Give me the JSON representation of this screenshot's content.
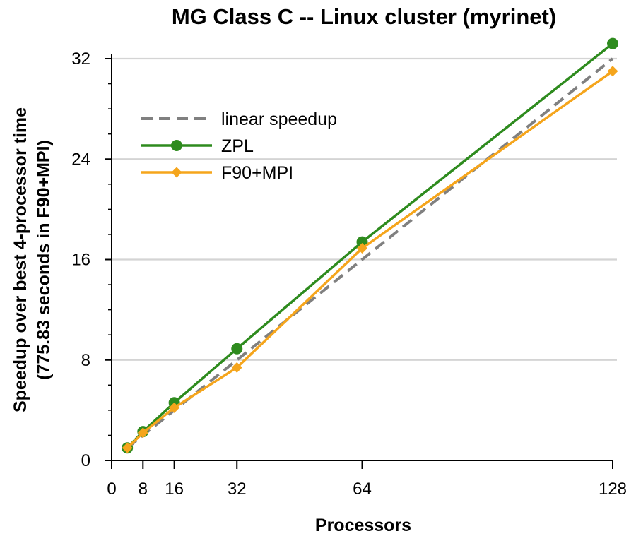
{
  "chart_data": {
    "type": "line",
    "title": "MG Class C -- Linux cluster (myrinet)",
    "xlabel": "Processors",
    "ylabel_line1": "Speedup over best 4-processor time",
    "ylabel_line2": "(775.83 seconds in F90+MPI)",
    "xlim": [
      0,
      128
    ],
    "ylim": [
      0,
      32
    ],
    "xticks": [
      0,
      8,
      16,
      32,
      64,
      128
    ],
    "yticks": [
      0,
      8,
      16,
      24,
      32
    ],
    "grid": true,
    "legend_position": "top-left",
    "series": [
      {
        "name": "linear speedup",
        "style": "dashed",
        "marker": "none",
        "color": "#808080",
        "x": [
          4,
          128
        ],
        "y": [
          1,
          32
        ]
      },
      {
        "name": "ZPL",
        "style": "solid",
        "marker": "circle",
        "color": "#2e8b1e",
        "x": [
          4,
          8,
          16,
          32,
          64,
          128
        ],
        "y": [
          1.0,
          2.3,
          4.6,
          8.9,
          17.4,
          33.2
        ]
      },
      {
        "name": "F90+MPI",
        "style": "solid",
        "marker": "diamond",
        "color": "#f5a51c",
        "x": [
          4,
          8,
          16,
          32,
          64,
          128
        ],
        "y": [
          1.0,
          2.2,
          4.2,
          7.4,
          16.9,
          31.0
        ]
      }
    ]
  }
}
